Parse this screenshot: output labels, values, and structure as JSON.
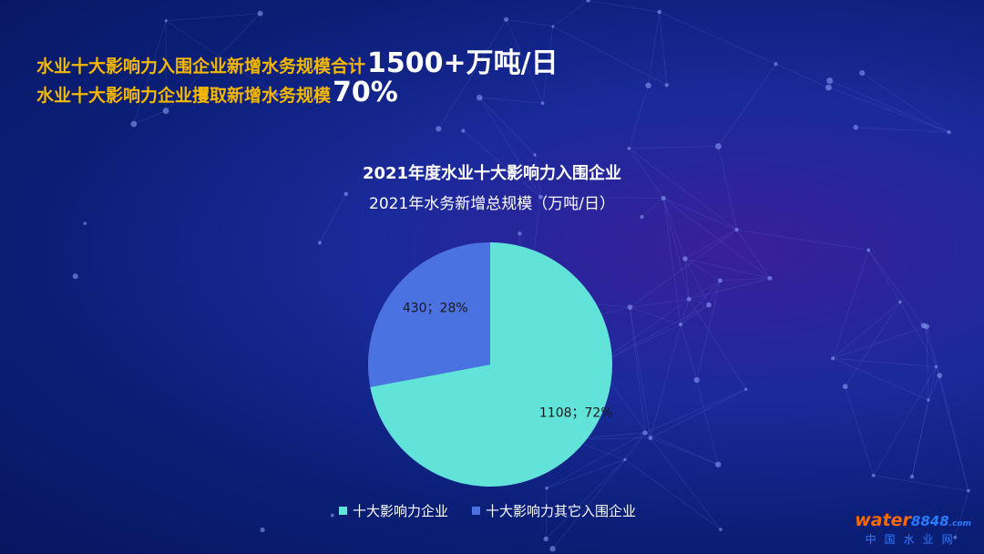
{
  "headline": {
    "line1_text": "水业十大影响力入围企业新增水务规模合计",
    "line1_value": "1500+万吨/日",
    "line2_text": "水业十大影响力企业攫取新增水务规模",
    "line2_value": "70%"
  },
  "chart_data": {
    "type": "pie",
    "title": "2021年度水业十大影响力入围企业",
    "subtitle": "2021年水务新增总规模（万吨/日）",
    "categories": [
      "十大影响力企业",
      "十大影响力其它入围企业"
    ],
    "values": [
      1108,
      430
    ],
    "percent_labels": [
      "72%",
      "28%"
    ],
    "data_labels": [
      "1108；72%",
      "430；28%"
    ],
    "colors": [
      "#62e3da",
      "#4a72e0"
    ],
    "legend_position": "bottom"
  },
  "watermark": {
    "logo_main": "water",
    "logo_num": "8848",
    "logo_dot": ".com",
    "sub": "中国水业网"
  }
}
